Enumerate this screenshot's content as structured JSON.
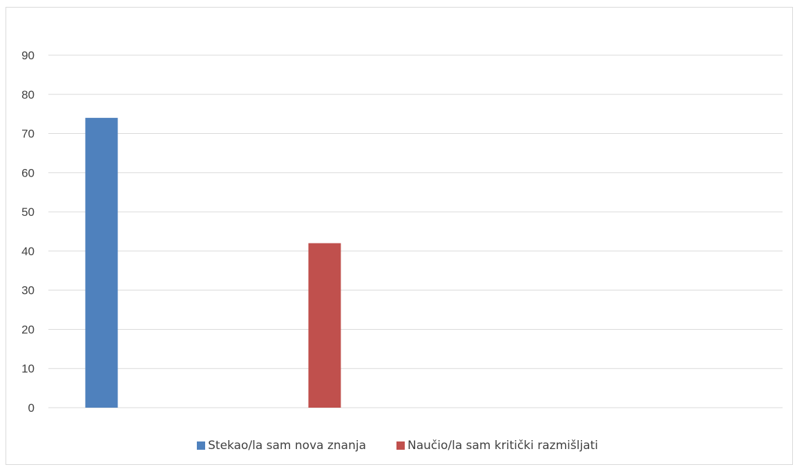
{
  "chart_data": {
    "type": "bar",
    "title": "",
    "xlabel": "",
    "ylabel": "",
    "ylim": [
      0,
      90
    ],
    "y_ticks": [
      0,
      10,
      20,
      30,
      40,
      50,
      60,
      70,
      80,
      90
    ],
    "grid": true,
    "legend_position": "bottom",
    "series": [
      {
        "name": "Stekao/la sam nova znanja",
        "value": 74,
        "color": "#4f81bd"
      },
      {
        "name": "Naučio/la sam kritički razmišljati",
        "value": 42,
        "color": "#c0504d"
      }
    ]
  }
}
